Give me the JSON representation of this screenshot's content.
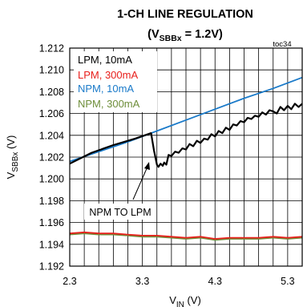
{
  "chart_data": {
    "type": "line",
    "title": "1-CH LINE REGULATION",
    "subtitle": {
      "prefix": "(V",
      "sub": "SBBx",
      "suffix": " = 1.2V)"
    },
    "tag": "toc34",
    "xlabel": {
      "main": "V",
      "sub": "IN",
      "unit": " (V)"
    },
    "ylabel": {
      "main": "V",
      "sub": "SBBx",
      "unit": " (V)"
    },
    "xlim": [
      2.3,
      5.5
    ],
    "ylim": [
      1.192,
      1.212
    ],
    "xticks": [
      2.3,
      3.3,
      4.3,
      5.3
    ],
    "xtick_labels": [
      "2.3",
      "3.3",
      "4.3",
      "5.3"
    ],
    "yticks": [
      1.192,
      1.194,
      1.196,
      1.198,
      1.2,
      1.202,
      1.204,
      1.206,
      1.208,
      1.21,
      1.212
    ],
    "ytick_labels": [
      "1.192",
      "1.194",
      "1.196",
      "1.198",
      "1.200",
      "1.202",
      "1.204",
      "1.206",
      "1.208",
      "1.210",
      "1.212"
    ],
    "grid": true,
    "legend_position": "top-left",
    "annotation": {
      "text": "NPM TO LPM",
      "x": 3.42,
      "y": 1.2027
    },
    "series": [
      {
        "name": "LPM, 10mA",
        "color": "#000000",
        "x": [
          2.3,
          2.6,
          2.9,
          3.2,
          3.42,
          3.46,
          3.5,
          3.52,
          3.55,
          3.58,
          3.6,
          3.63,
          3.66,
          3.7,
          3.75,
          3.8,
          3.85,
          3.9,
          3.95,
          4.0,
          4.05,
          4.1,
          4.15,
          4.2,
          4.25,
          4.3,
          4.35,
          4.4,
          4.45,
          4.5,
          4.55,
          4.6,
          4.65,
          4.7,
          4.75,
          4.8,
          4.85,
          4.9,
          4.95,
          5.0,
          5.05,
          5.1,
          5.15,
          5.2,
          5.25,
          5.3,
          5.35,
          5.4,
          5.45,
          5.5
        ],
        "y": [
          1.2014,
          1.2024,
          1.2031,
          1.2037,
          1.2042,
          1.2026,
          1.2013,
          1.2011,
          1.2014,
          1.2012,
          1.2015,
          1.2013,
          1.2022,
          1.2021,
          1.2025,
          1.2024,
          1.2028,
          1.2027,
          1.2032,
          1.203,
          1.2035,
          1.2033,
          1.2037,
          1.2036,
          1.2041,
          1.2039,
          1.2044,
          1.2042,
          1.2047,
          1.2045,
          1.205,
          1.2049,
          1.2053,
          1.2052,
          1.2056,
          1.2055,
          1.2058,
          1.2057,
          1.2061,
          1.2059,
          1.2063,
          1.2062,
          1.206,
          1.2066,
          1.2063,
          1.2067,
          1.2064,
          1.2069,
          1.2066,
          1.2069
        ]
      },
      {
        "name": "LPM, 300mA",
        "color": "#e8201c",
        "x": [
          2.3,
          2.5,
          2.7,
          2.9,
          3.1,
          3.3,
          3.5,
          3.7,
          3.9,
          4.1,
          4.3,
          4.5,
          4.7,
          4.9,
          5.1,
          5.3,
          5.5
        ],
        "y": [
          1.195,
          1.1951,
          1.195,
          1.195,
          1.1949,
          1.1948,
          1.1948,
          1.1947,
          1.1946,
          1.1947,
          1.1945,
          1.1946,
          1.1946,
          1.1946,
          1.1947,
          1.1946,
          1.1947
        ]
      },
      {
        "name": "NPM, 10mA",
        "color": "#1a7ac9",
        "x": [
          2.3,
          2.7,
          3.1,
          3.5,
          3.9,
          4.3,
          4.7,
          5.1,
          5.5
        ],
        "y": [
          1.2016,
          1.2025,
          1.2034,
          1.2044,
          1.2054,
          1.2064,
          1.2074,
          1.2083,
          1.2093
        ]
      },
      {
        "name": "NPM, 300mA",
        "color": "#6e8e3a",
        "x": [
          2.3,
          2.5,
          2.7,
          2.9,
          3.1,
          3.3,
          3.5,
          3.7,
          3.9,
          4.1,
          4.3,
          4.5,
          4.7,
          4.9,
          5.1,
          5.3,
          5.5
        ],
        "y": [
          1.1949,
          1.195,
          1.1949,
          1.1949,
          1.1948,
          1.1947,
          1.1947,
          1.1946,
          1.1945,
          1.1946,
          1.1944,
          1.1945,
          1.1945,
          1.1945,
          1.1946,
          1.1945,
          1.1946
        ]
      }
    ]
  }
}
